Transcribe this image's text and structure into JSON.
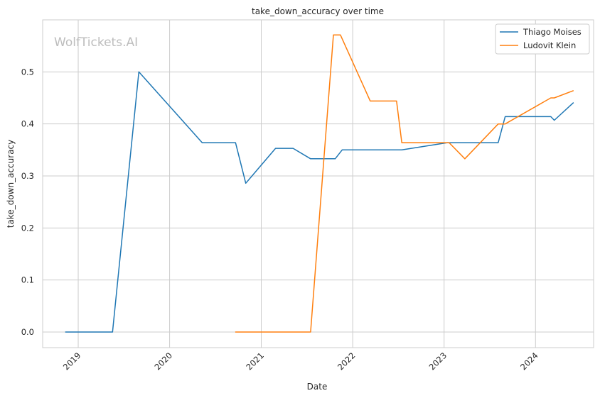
{
  "chart_data": {
    "type": "line",
    "title": "take_down_accuracy over time",
    "xlabel": "Date",
    "ylabel": "take_down_accuracy",
    "watermark": "WolfTickets.AI",
    "x_ticks": [
      "2019",
      "2020",
      "2021",
      "2022",
      "2023",
      "2024"
    ],
    "y_ticks": [
      "0.0",
      "0.1",
      "0.2",
      "0.3",
      "0.4",
      "0.5"
    ],
    "xlim": [
      "2018-08-12",
      "2024-08-20"
    ],
    "ylim": [
      -0.03,
      0.6
    ],
    "grid": true,
    "legend_position": "top-right",
    "series": [
      {
        "name": "Thiago Moises",
        "color": "#1f77b4",
        "points": [
          [
            "2018-11-10",
            0.0
          ],
          [
            "2019-05-18",
            0.0
          ],
          [
            "2019-08-31",
            0.5
          ],
          [
            "2020-05-10",
            0.364
          ],
          [
            "2020-09-20",
            0.364
          ],
          [
            "2020-10-31",
            0.286
          ],
          [
            "2021-02-27",
            0.353
          ],
          [
            "2021-05-08",
            0.353
          ],
          [
            "2021-07-17",
            0.333
          ],
          [
            "2021-10-23",
            0.333
          ],
          [
            "2021-11-20",
            0.35
          ],
          [
            "2022-07-16",
            0.35
          ],
          [
            "2023-01-14",
            0.364
          ],
          [
            "2023-08-05",
            0.364
          ],
          [
            "2023-09-02",
            0.414
          ],
          [
            "2024-03-02",
            0.414
          ],
          [
            "2024-03-16",
            0.407
          ],
          [
            "2024-06-01",
            0.441
          ]
        ]
      },
      {
        "name": "Ludovit Klein",
        "color": "#ff7f0e",
        "points": [
          [
            "2020-09-19",
            0.0
          ],
          [
            "2021-07-17",
            0.0
          ],
          [
            "2021-10-16",
            0.571
          ],
          [
            "2021-11-13",
            0.571
          ],
          [
            "2022-03-12",
            0.444
          ],
          [
            "2022-06-25",
            0.444
          ],
          [
            "2022-07-16",
            0.364
          ],
          [
            "2023-01-21",
            0.364
          ],
          [
            "2023-03-25",
            0.333
          ],
          [
            "2023-08-05",
            0.4
          ],
          [
            "2023-09-02",
            0.4
          ],
          [
            "2024-03-02",
            0.45
          ],
          [
            "2024-03-16",
            0.45
          ],
          [
            "2024-06-01",
            0.464
          ]
        ]
      }
    ]
  }
}
